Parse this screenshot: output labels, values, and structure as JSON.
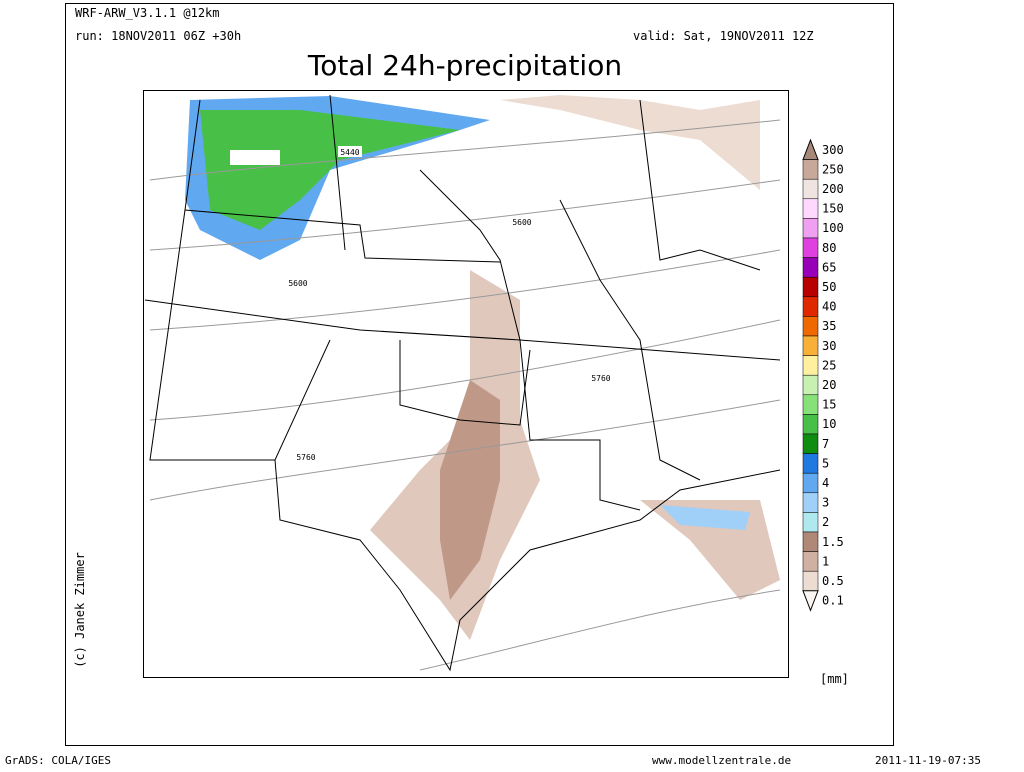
{
  "header": {
    "model": "WRF-ARW_V3.1.1 @12km",
    "run": "run: 18NOV2011 06Z +30h",
    "valid": "valid: Sat, 19NOV2011 12Z",
    "title": "Total 24h-precipitation"
  },
  "legend": {
    "unit": "[mm]",
    "levels": [
      {
        "label": "300",
        "color": "#a88878"
      },
      {
        "label": "250",
        "color": "#c8a898"
      },
      {
        "label": "200",
        "color": "#f0e4e0"
      },
      {
        "label": "150",
        "color": "#ffd8ff"
      },
      {
        "label": "100",
        "color": "#f0a0f0"
      },
      {
        "label": "80",
        "color": "#e040e0"
      },
      {
        "label": "65",
        "color": "#9800b8"
      },
      {
        "label": "50",
        "color": "#b80000"
      },
      {
        "label": "40",
        "color": "#e02800"
      },
      {
        "label": "35",
        "color": "#f06800"
      },
      {
        "label": "30",
        "color": "#f8b038"
      },
      {
        "label": "25",
        "color": "#fff0a0"
      },
      {
        "label": "20",
        "color": "#c8f0b0"
      },
      {
        "label": "15",
        "color": "#88e078"
      },
      {
        "label": "10",
        "color": "#48c048"
      },
      {
        "label": "7",
        "color": "#108c10"
      },
      {
        "label": "5",
        "color": "#2078e0"
      },
      {
        "label": "4",
        "color": "#60a8f0"
      },
      {
        "label": "3",
        "color": "#a0d0f8"
      },
      {
        "label": "2",
        "color": "#b0e8f0"
      },
      {
        "label": "1.5",
        "color": "#b08878"
      },
      {
        "label": "1",
        "color": "#d0b0a0"
      },
      {
        "label": "0.5",
        "color": "#ecdcd2"
      },
      {
        "label": "0.1",
        "color": "#fbf5f1"
      }
    ]
  },
  "map": {
    "contour_labels": [
      "5440",
      "5600",
      "5600",
      "5760",
      "5760"
    ]
  },
  "credit": "(c) Janek Zimmer",
  "footer": {
    "left": "GrADS: COLA/IGES",
    "center": "www.modellzentrale.de",
    "right": "2011-11-19-07:35"
  }
}
